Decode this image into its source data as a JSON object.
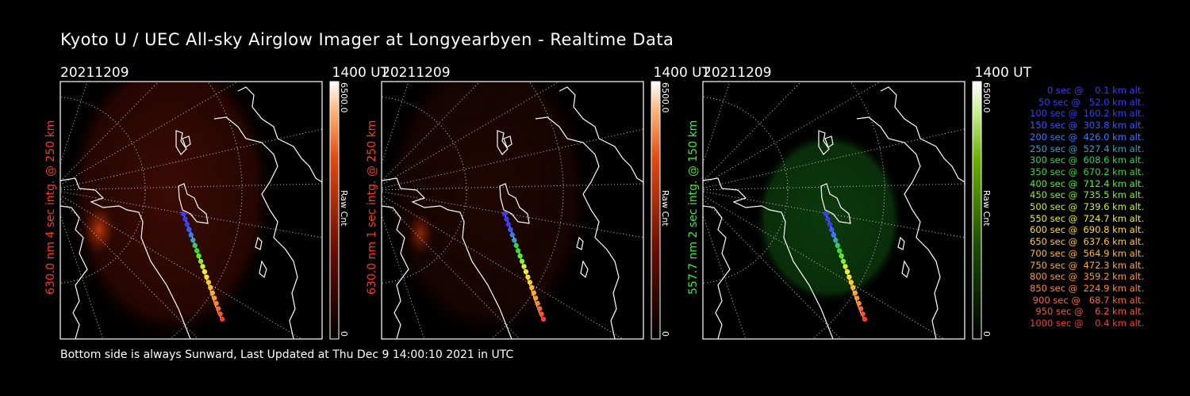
{
  "title": "Kyoto U / UEC All-sky Airglow Imager at Longyearbyen - Realtime Data",
  "footer": "Bottom side is always Sunward, Last Updated at Thu Dec  9 14:00:10 2021 in UTC",
  "panels": [
    {
      "date": "20211209",
      "time": "1400 UT",
      "ylabel": "630.0 nm 4 sec intg. @ 250 km",
      "color": "#ff3a1a",
      "cbar_max": "6500.0",
      "cbar_min": "0",
      "cbar_unit": "Raw Cnt",
      "glow": "red"
    },
    {
      "date": "20211209",
      "time": "1400 UT",
      "ylabel": "630.0 nm 1 sec intg. @ 250 km",
      "color": "#ff3a1a",
      "cbar_max": "6500.0",
      "cbar_min": "0",
      "cbar_unit": "Raw Cnt",
      "glow": "red"
    },
    {
      "date": "20211209",
      "time": "1400 UT",
      "ylabel": "557.7 nm 2 sec intg. @ 150 km",
      "color": "#33ee33",
      "cbar_max": "6500.0",
      "cbar_min": "0",
      "cbar_unit": "Raw Cnt",
      "glow": "green"
    }
  ],
  "legend": [
    {
      "text": "0 sec @    0.1 km alt.",
      "color": "#3a3aff"
    },
    {
      "text": "50 sec @   52.0 km alt.",
      "color": "#3a3aff"
    },
    {
      "text": "100 sec @  160.2 km alt.",
      "color": "#3a3aff"
    },
    {
      "text": "150 sec @  303.8 km alt.",
      "color": "#3a5aff"
    },
    {
      "text": "200 sec @  426.0 km alt.",
      "color": "#3a7aff"
    },
    {
      "text": "250 sec @  527.4 km alt.",
      "color": "#3aa0c0"
    },
    {
      "text": "300 sec @  608.6 km alt.",
      "color": "#3acc60"
    },
    {
      "text": "350 sec @  670.2 km alt.",
      "color": "#33dd33"
    },
    {
      "text": "400 sec @  712.4 km alt.",
      "color": "#55ee33"
    },
    {
      "text": "450 sec @  735.5 km alt.",
      "color": "#88ee33"
    },
    {
      "text": "500 sec @  739.6 km alt.",
      "color": "#ccee33"
    },
    {
      "text": "550 sec @  724.7 km alt.",
      "color": "#eeee33"
    },
    {
      "text": "600 sec @  690.8 km alt.",
      "color": "#ffdd33"
    },
    {
      "text": "650 sec @  637.6 km alt.",
      "color": "#ffcc33"
    },
    {
      "text": "700 sec @  564.9 km alt.",
      "color": "#ffbb33"
    },
    {
      "text": "750 sec @  472.3 km alt.",
      "color": "#ffaa33"
    },
    {
      "text": "800 sec @  359.2 km alt.",
      "color": "#ff9933"
    },
    {
      "text": "850 sec @  224.9 km alt.",
      "color": "#ff8833"
    },
    {
      "text": "900 sec @   68.7 km alt.",
      "color": "#ff6633"
    },
    {
      "text": "950 sec @    6.2 km alt.",
      "color": "#ff5533"
    },
    {
      "text": "1000 sec @    0.4 km alt.",
      "color": "#ff3a33"
    }
  ]
}
